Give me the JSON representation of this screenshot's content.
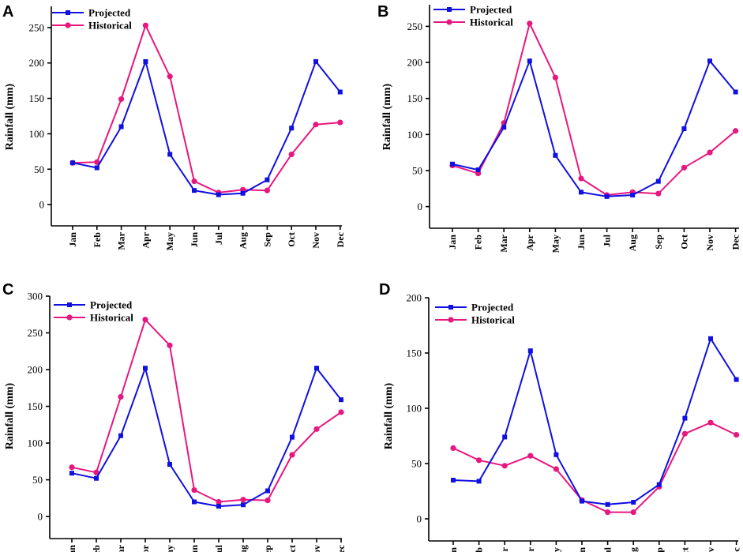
{
  "chart_data": [
    {
      "panel": "A",
      "type": "line",
      "categories": [
        "Jan",
        "Feb",
        "Mar",
        "Apr",
        "May",
        "Jun",
        "Jul",
        "Aug",
        "Sep",
        "Oct",
        "Nov",
        "Dec"
      ],
      "ylabel": "Rainfall (mm)",
      "ylim": [
        -30,
        280
      ],
      "yticks": [
        0,
        50,
        100,
        150,
        200,
        250
      ],
      "series": [
        {
          "name": "Projected",
          "color": "#1010e0",
          "marker": "square",
          "values": [
            59,
            52,
            110,
            202,
            71,
            20,
            14,
            16,
            35,
            108,
            202,
            159
          ]
        },
        {
          "name": "Historical",
          "color": "#e8177f",
          "marker": "circle",
          "values": [
            59,
            60,
            149,
            253,
            181,
            33,
            17,
            21,
            20,
            71,
            113,
            116
          ]
        }
      ]
    },
    {
      "panel": "B",
      "type": "line",
      "categories": [
        "Jan",
        "Feb",
        "Mar",
        "Apr",
        "May",
        "Jun",
        "Jul",
        "Aug",
        "Sep",
        "Oct",
        "Nov",
        "Dec"
      ],
      "ylabel": "Rainfall (mm)",
      "ylim": [
        -30,
        280
      ],
      "yticks": [
        0,
        50,
        100,
        150,
        200,
        250
      ],
      "series": [
        {
          "name": "Projected",
          "color": "#1010e0",
          "marker": "square",
          "values": [
            59,
            51,
            110,
            202,
            71,
            20,
            14,
            16,
            35,
            108,
            202,
            159
          ]
        },
        {
          "name": "Historical",
          "color": "#e8177f",
          "marker": "circle",
          "values": [
            57,
            46,
            116,
            254,
            179,
            39,
            16,
            20,
            18,
            54,
            75,
            105
          ]
        }
      ]
    },
    {
      "panel": "C",
      "type": "line",
      "categories": [
        "Jan",
        "Feb",
        "Mar",
        "Apr",
        "May",
        "Jun",
        "Jul",
        "Aug",
        "Sep",
        "Oct",
        "Nov",
        "Dec"
      ],
      "ylabel": "Rainfall (mm)",
      "ylim": [
        -30,
        300
      ],
      "yticks": [
        0,
        50,
        100,
        150,
        200,
        250,
        300
      ],
      "series": [
        {
          "name": "Projected",
          "color": "#1010e0",
          "marker": "square",
          "values": [
            59,
            52,
            110,
            202,
            71,
            20,
            14,
            16,
            35,
            108,
            202,
            159
          ]
        },
        {
          "name": "Historical",
          "color": "#e8177f",
          "marker": "circle",
          "values": [
            67,
            60,
            163,
            268,
            233,
            36,
            20,
            23,
            22,
            84,
            119,
            142
          ]
        }
      ]
    },
    {
      "panel": "D",
      "type": "line",
      "categories": [
        "Jan",
        "Feb",
        "Mar",
        "Apr",
        "May",
        "Jun",
        "Jul",
        "Aug",
        "Sep",
        "Oct",
        "Nov",
        "Dec"
      ],
      "ylabel": "Rainfall (mm)",
      "ylim": [
        -20,
        200
      ],
      "yticks": [
        0,
        50,
        100,
        150,
        200
      ],
      "series": [
        {
          "name": "Projected",
          "color": "#1010e0",
          "marker": "square",
          "values": [
            35,
            34,
            74,
            152,
            58,
            16,
            13,
            15,
            31,
            91,
            163,
            126
          ]
        },
        {
          "name": "Historical",
          "color": "#e8177f",
          "marker": "circle",
          "values": [
            64,
            53,
            48,
            57,
            45,
            17,
            6,
            6,
            29,
            77,
            87,
            76
          ]
        }
      ]
    }
  ]
}
